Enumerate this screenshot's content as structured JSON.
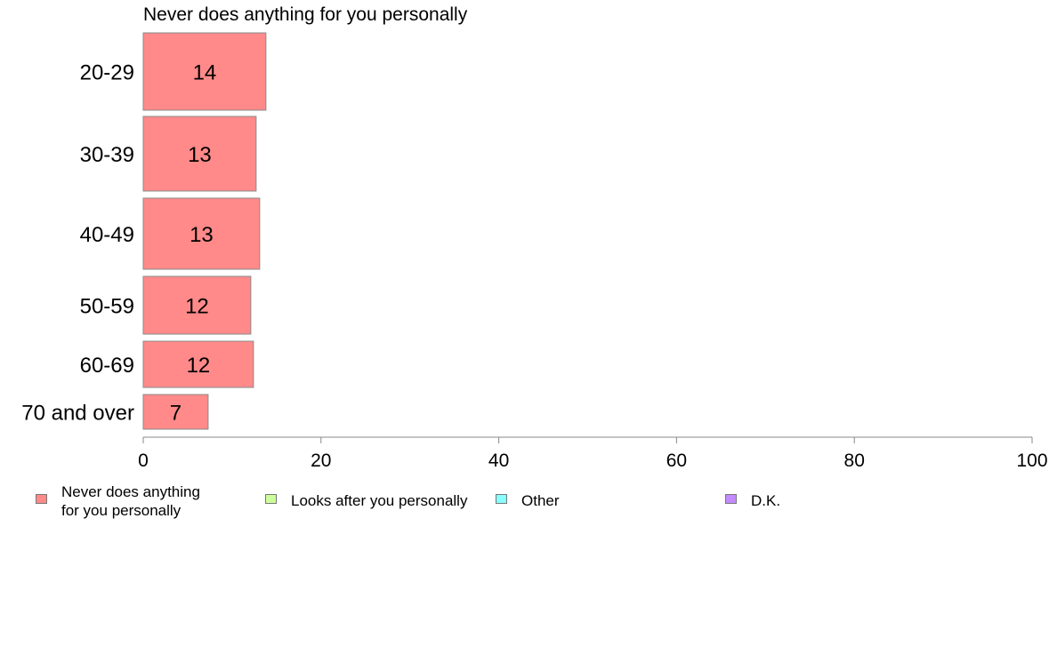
{
  "chart_data": {
    "type": "bar",
    "orientation": "horizontal",
    "title": "Never does anything for you personally",
    "categories": [
      "20-29",
      "30-39",
      "40-49",
      "50-59",
      "60-69",
      "70 and over"
    ],
    "values": [
      14,
      13,
      13,
      12,
      12,
      7
    ],
    "bar_values": [
      13.8,
      12.7,
      13.1,
      12.1,
      12.4,
      7.3
    ],
    "xlim": [
      0,
      100
    ],
    "xticks": [
      "0",
      "20",
      "40",
      "60",
      "80",
      "100"
    ],
    "bar_color": "#ff8a89",
    "grid": false,
    "legend_position": "bottom",
    "legend": [
      {
        "label": "Never does anything\nfor you personally",
        "color": "#ff8a89"
      },
      {
        "label": "Looks after you personally",
        "color": "#ccff99"
      },
      {
        "label": "Other",
        "color": "#88ffff"
      },
      {
        "label": "D.K.",
        "color": "#c48aff"
      }
    ]
  }
}
